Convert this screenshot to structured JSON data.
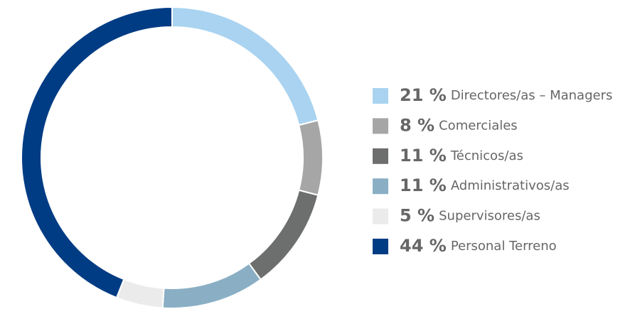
{
  "chart_data": {
    "type": "donut",
    "categories": [
      "Directores/as – Managers",
      "Comerciales",
      "Técnicos/as",
      "Administrativos/as",
      "Supervisores/as",
      "Personal Terreno"
    ],
    "values": [
      21,
      8,
      11,
      11,
      5,
      44
    ],
    "value_labels": [
      "21 %",
      "8 %",
      "11 %",
      "11 %",
      "5 %",
      "44 %"
    ],
    "colors": [
      "#a9d3f0",
      "#a6a6a6",
      "#6d6e6e",
      "#8aafc4",
      "#ebebeb",
      "#003c84"
    ]
  }
}
